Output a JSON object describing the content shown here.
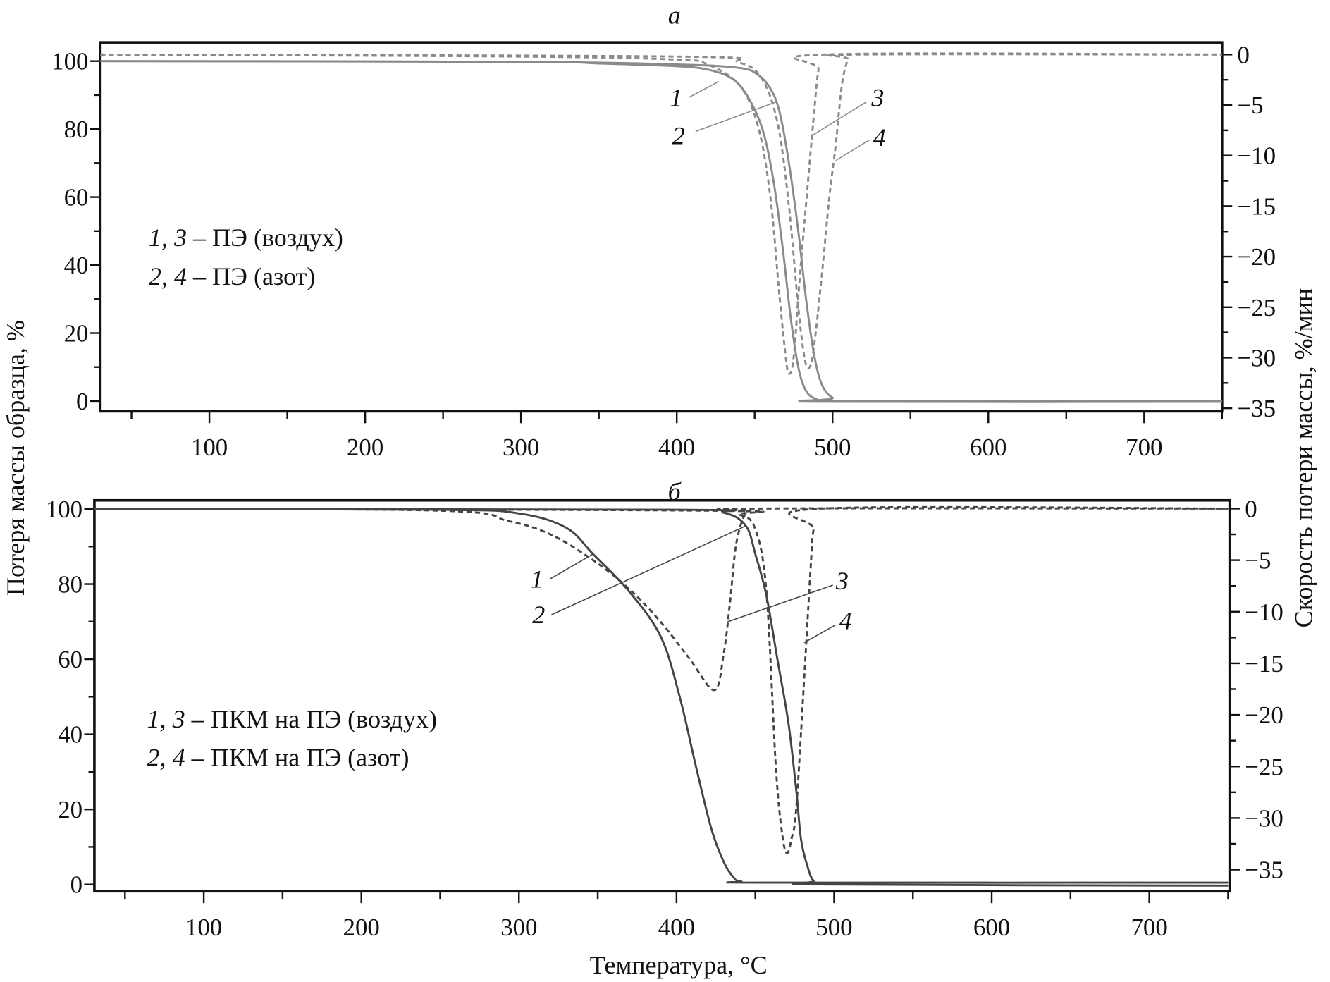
{
  "figure": {
    "y_left_label": "Потеря массы образца, %",
    "y_right_label": "Скорость потери массы, %/мин",
    "x_label": "Температура, °C"
  },
  "chart_data": [
    {
      "type": "line",
      "panel_label": "а",
      "xlabel": "Температура, °C",
      "ylabel": "Потеря массы образца, %",
      "y2label": "Скорость потери массы, %/мин",
      "xlim": [
        30,
        750
      ],
      "ylim": [
        -3,
        105.5
      ],
      "y2lim": [
        -35.3,
        1.2
      ],
      "x_ticks": [
        100,
        200,
        300,
        400,
        500,
        600,
        700
      ],
      "y_ticks": [
        0,
        20,
        40,
        60,
        80,
        100
      ],
      "y2_ticks": [
        0,
        -5,
        -10,
        -15,
        -20,
        -25,
        -30,
        -35
      ],
      "line_color": "#8a8a8a",
      "legend": [
        {
          "nums": "1, 3",
          "text": " – ПЭ (воздух)"
        },
        {
          "nums": "2, 4",
          "text": " – ПЭ (азот)"
        }
      ],
      "series": [
        {
          "name": "1",
          "axis": "left",
          "style": "solid",
          "points": [
            [
              30,
              100
            ],
            [
              300,
              99.8
            ],
            [
              350,
              99.3
            ],
            [
              400,
              98.5
            ],
            [
              420,
              97.5
            ],
            [
              435,
              95
            ],
            [
              445,
              90
            ],
            [
              455,
              80
            ],
            [
              462,
              65
            ],
            [
              468,
              45
            ],
            [
              473,
              25
            ],
            [
              478,
              10
            ],
            [
              483,
              3
            ],
            [
              490,
              0.5
            ],
            [
              500,
              0
            ],
            [
              750,
              0
            ]
          ]
        },
        {
          "name": "2",
          "axis": "left",
          "style": "solid",
          "points": [
            [
              30,
              100
            ],
            [
              300,
              99.8
            ],
            [
              400,
              99
            ],
            [
              440,
              98
            ],
            [
              452,
              96
            ],
            [
              460,
              92
            ],
            [
              466,
              85
            ],
            [
              472,
              70
            ],
            [
              478,
              50
            ],
            [
              483,
              30
            ],
            [
              488,
              14
            ],
            [
              493,
              5
            ],
            [
              500,
              1
            ],
            [
              510,
              0
            ],
            [
              750,
              0
            ]
          ]
        },
        {
          "name": "3",
          "axis": "right",
          "style": "dashed",
          "points": [
            [
              30,
              0
            ],
            [
              300,
              -0.2
            ],
            [
              400,
              -0.5
            ],
            [
              420,
              -1
            ],
            [
              440,
              -3
            ],
            [
              452,
              -7
            ],
            [
              460,
              -14
            ],
            [
              466,
              -24
            ],
            [
              470,
              -30
            ],
            [
              472,
              -31.6
            ],
            [
              475,
              -30
            ],
            [
              479,
              -22
            ],
            [
              484,
              -13
            ],
            [
              488,
              -6
            ],
            [
              491,
              -1.5
            ],
            [
              495,
              0
            ],
            [
              750,
              0
            ]
          ]
        },
        {
          "name": "4",
          "axis": "right",
          "style": "dashed",
          "points": [
            [
              30,
              0
            ],
            [
              400,
              -0.2
            ],
            [
              440,
              -0.8
            ],
            [
              455,
              -2.5
            ],
            [
              465,
              -7
            ],
            [
              472,
              -15
            ],
            [
              478,
              -25
            ],
            [
              482,
              -30
            ],
            [
              485,
              -31
            ],
            [
              488,
              -29
            ],
            [
              493,
              -22
            ],
            [
              498,
              -14
            ],
            [
              502,
              -9
            ],
            [
              506,
              -3
            ],
            [
              510,
              -0.5
            ],
            [
              515,
              0
            ],
            [
              750,
              0
            ]
          ]
        }
      ]
    },
    {
      "type": "line",
      "panel_label": "б",
      "xlabel": "Температура, °C",
      "ylabel": "Потеря массы образца, %",
      "y2label": "Скорость потери массы, %/мин",
      "xlim": [
        30.6,
        751
      ],
      "ylim": [
        -1.8,
        102.3
      ],
      "y2lim": [
        -37.1,
        0.8
      ],
      "x_ticks": [
        100,
        200,
        300,
        400,
        500,
        600,
        700
      ],
      "y_ticks": [
        0,
        20,
        40,
        60,
        80,
        100
      ],
      "y2_ticks": [
        0,
        -5,
        -10,
        -15,
        -20,
        -25,
        -30,
        -35
      ],
      "line_color": "#444444",
      "legend": [
        {
          "nums": "1, 3",
          "text": " – ПКМ на ПЭ (воздух)"
        },
        {
          "nums": "2, 4",
          "text": " – ПКМ на ПЭ (азот)"
        }
      ],
      "series": [
        {
          "name": "1",
          "axis": "left",
          "style": "solid",
          "points": [
            [
              30,
              100
            ],
            [
              250,
              99.8
            ],
            [
              300,
              98.8
            ],
            [
              330,
              95
            ],
            [
              347,
              88
            ],
            [
              370,
              78
            ],
            [
              390,
              66
            ],
            [
              402,
              50
            ],
            [
              412,
              32
            ],
            [
              422,
              15
            ],
            [
              430,
              6
            ],
            [
              436,
              2
            ],
            [
              441,
              0.8
            ],
            [
              460,
              0.5
            ],
            [
              750,
              0.5
            ]
          ]
        },
        {
          "name": "2",
          "axis": "left",
          "style": "solid",
          "points": [
            [
              30,
              100
            ],
            [
              400,
              99.8
            ],
            [
              430,
              99
            ],
            [
              444,
              95.5
            ],
            [
              450,
              88
            ],
            [
              457,
              77
            ],
            [
              464,
              60
            ],
            [
              471,
              43
            ],
            [
              476,
              25
            ],
            [
              479,
              12
            ],
            [
              483,
              5
            ],
            [
              487,
              1
            ],
            [
              495,
              0
            ],
            [
              750,
              -0.3
            ]
          ]
        },
        {
          "name": "3",
          "axis": "right",
          "style": "dashed",
          "points": [
            [
              30,
              0
            ],
            [
              250,
              -0.2
            ],
            [
              293,
              -1.2
            ],
            [
              320,
              -2.5
            ],
            [
              347,
              -5
            ],
            [
              370,
              -7.8
            ],
            [
              390,
              -11
            ],
            [
              408,
              -14.5
            ],
            [
              424,
              -17.6
            ],
            [
              430,
              -14
            ],
            [
              434,
              -9
            ],
            [
              438,
              -3.3
            ],
            [
              444,
              -0.4
            ],
            [
              450,
              0
            ],
            [
              750,
              0
            ]
          ]
        },
        {
          "name": "4",
          "axis": "right",
          "style": "dashed",
          "points": [
            [
              30,
              0
            ],
            [
              420,
              -0.2
            ],
            [
              440,
              -0.6
            ],
            [
              450,
              -2
            ],
            [
              457,
              -8
            ],
            [
              463,
              -25
            ],
            [
              467,
              -31.5
            ],
            [
              470,
              -33.4
            ],
            [
              473,
              -32
            ],
            [
              476,
              -29
            ],
            [
              481,
              -16.5
            ],
            [
              485,
              -6
            ],
            [
              487,
              -2
            ],
            [
              492,
              0
            ],
            [
              750,
              0
            ]
          ]
        }
      ]
    }
  ]
}
